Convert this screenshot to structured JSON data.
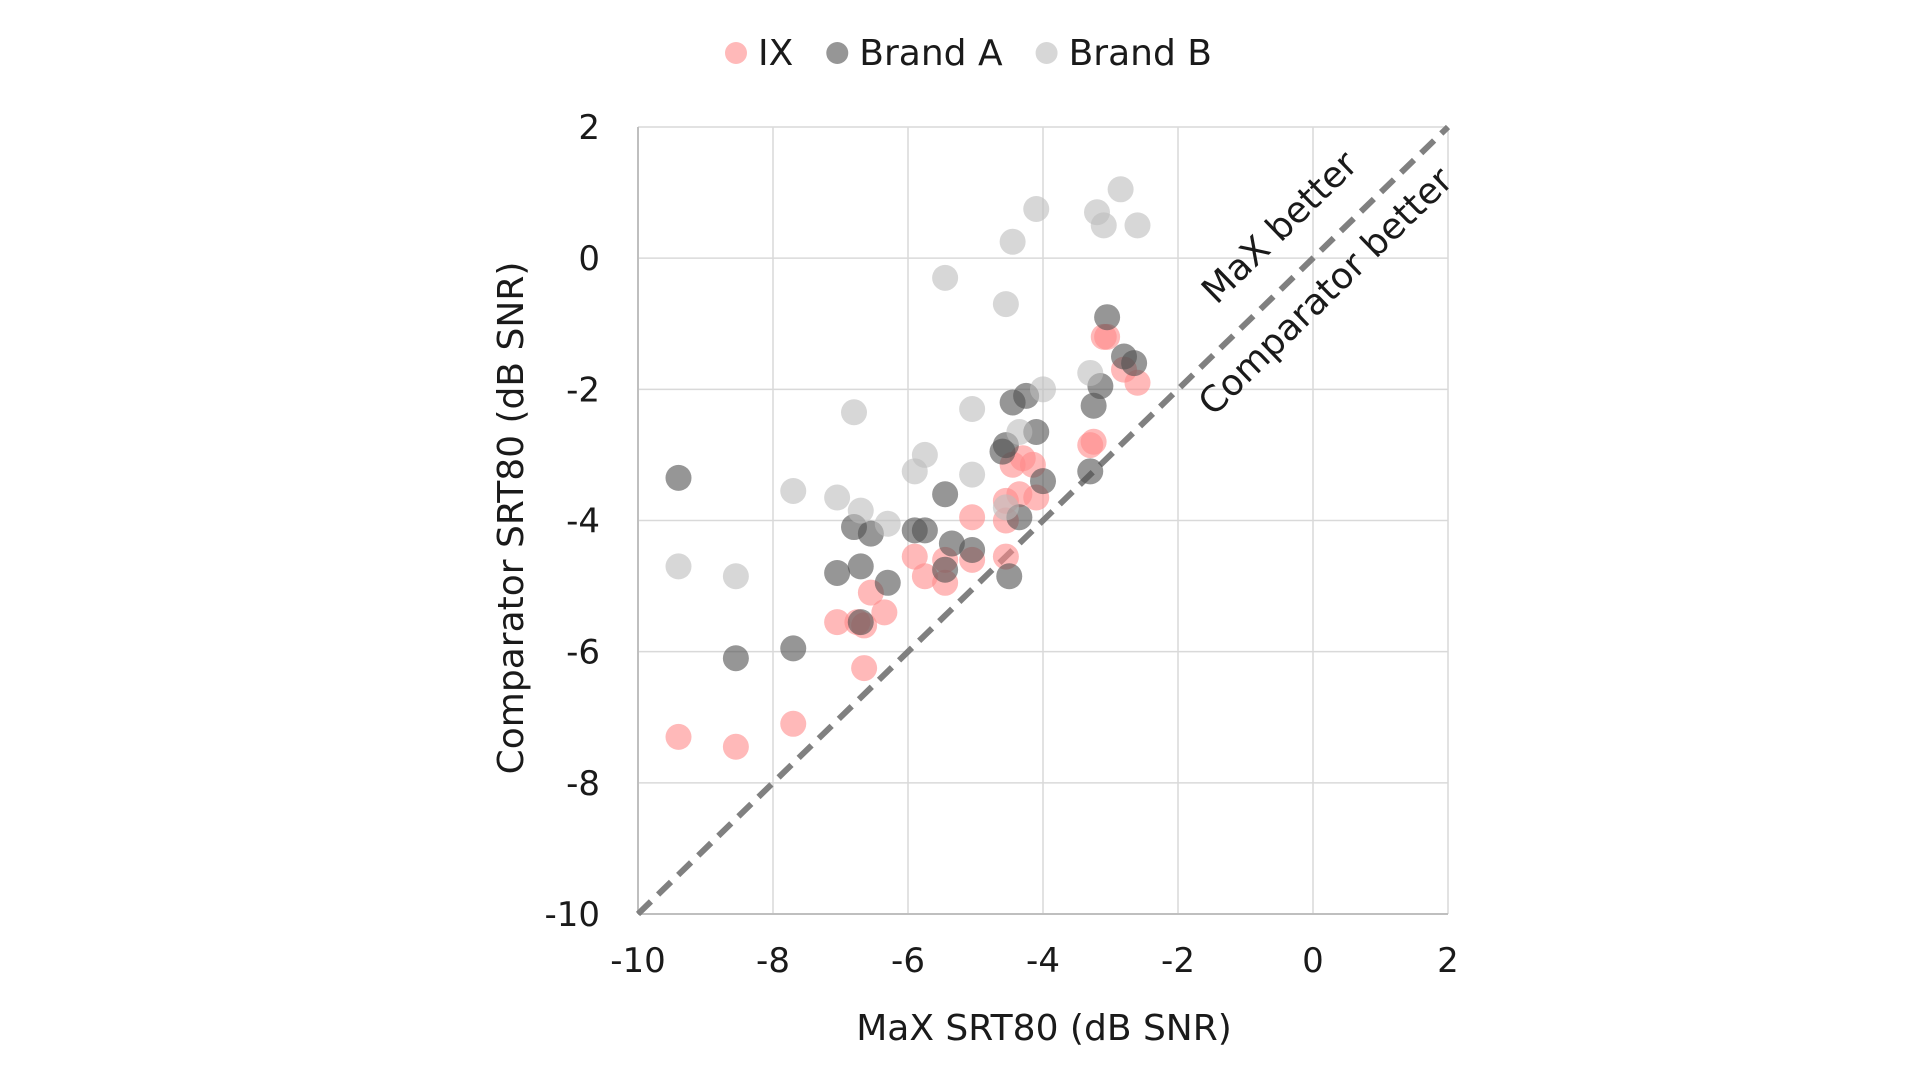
{
  "chart_data": {
    "type": "scatter",
    "title": "",
    "xlabel": "MaX SRT80 (dB SNR)",
    "ylabel": "Comparator SRT80 (dB SNR)",
    "xlim": [
      -10,
      2
    ],
    "ylim": [
      -10,
      2
    ],
    "xticks": [
      -10,
      -8,
      -6,
      -4,
      -2,
      0,
      2
    ],
    "yticks": [
      -10,
      -8,
      -6,
      -4,
      -2,
      0,
      2
    ],
    "xtick_labels": [
      "-10",
      "-8",
      "-6",
      "-4",
      "-2",
      "0",
      "2"
    ],
    "ytick_labels": [
      "-10",
      "-8",
      "-6",
      "-4",
      "-2",
      "0",
      "2"
    ],
    "grid": true,
    "legend_position": "top-center",
    "reference_line": {
      "style": "dashed",
      "from": [
        -10,
        -10
      ],
      "to": [
        2,
        2
      ],
      "color": "#808080"
    },
    "annotations": {
      "upper": "MaX better",
      "lower": "Comparator better"
    },
    "series": [
      {
        "name": "IX",
        "color": "#ff8a8a",
        "x": [
          -9.4,
          -8.55,
          -7.7,
          -6.65,
          -6.65,
          -6.75,
          -7.05,
          -6.35,
          -6.55,
          -5.75,
          -5.45,
          -5.9,
          -5.05,
          -5.45,
          -4.55,
          -4.55,
          -4.55,
          -5.05,
          -4.35,
          -4.1,
          -4.15,
          -4.45,
          -4.3,
          -3.3,
          -3.25,
          -3.1,
          -3.05,
          -2.8,
          -2.6
        ],
        "y": [
          -7.3,
          -7.45,
          -7.1,
          -6.25,
          -5.6,
          -5.55,
          -5.55,
          -5.4,
          -5.1,
          -4.85,
          -4.95,
          -4.55,
          -4.6,
          -4.6,
          -4.55,
          -4.0,
          -3.7,
          -3.95,
          -3.6,
          -3.65,
          -3.15,
          -3.15,
          -3.05,
          -2.85,
          -2.8,
          -1.2,
          -1.2,
          -1.7,
          -1.9
        ]
      },
      {
        "name": "Brand A",
        "color": "#505050",
        "x": [
          -9.4,
          -8.55,
          -7.7,
          -7.05,
          -6.8,
          -6.7,
          -6.7,
          -6.55,
          -6.3,
          -5.9,
          -5.75,
          -5.45,
          -5.45,
          -5.35,
          -5.05,
          -4.5,
          -4.35,
          -4.0,
          -4.6,
          -4.55,
          -4.1,
          -4.45,
          -4.25,
          -3.3,
          -3.25,
          -3.15,
          -3.05,
          -2.8,
          -2.65
        ],
        "y": [
          -3.35,
          -6.1,
          -5.95,
          -4.8,
          -4.1,
          -4.7,
          -5.55,
          -4.2,
          -4.95,
          -4.15,
          -4.15,
          -3.6,
          -4.75,
          -4.35,
          -4.45,
          -4.85,
          -3.95,
          -3.4,
          -2.95,
          -2.85,
          -2.65,
          -2.2,
          -2.1,
          -3.25,
          -2.25,
          -1.95,
          -0.9,
          -1.5,
          -1.6
        ]
      },
      {
        "name": "Brand B",
        "color": "#bdbdbd",
        "x": [
          -9.4,
          -8.55,
          -7.7,
          -7.05,
          -6.8,
          -6.7,
          -6.3,
          -5.9,
          -5.75,
          -5.45,
          -5.05,
          -5.05,
          -4.55,
          -4.45,
          -4.1,
          -4.0,
          -4.35,
          -4.55,
          -3.3,
          -3.2,
          -3.1,
          -2.85,
          -2.6
        ],
        "y": [
          -4.7,
          -4.85,
          -3.55,
          -3.65,
          -2.35,
          -3.85,
          -4.05,
          -3.25,
          -3.0,
          -0.3,
          -2.3,
          -3.3,
          -0.7,
          0.25,
          0.75,
          -2.0,
          -2.65,
          -3.8,
          -1.75,
          0.7,
          0.5,
          1.05,
          0.5
        ]
      }
    ]
  }
}
